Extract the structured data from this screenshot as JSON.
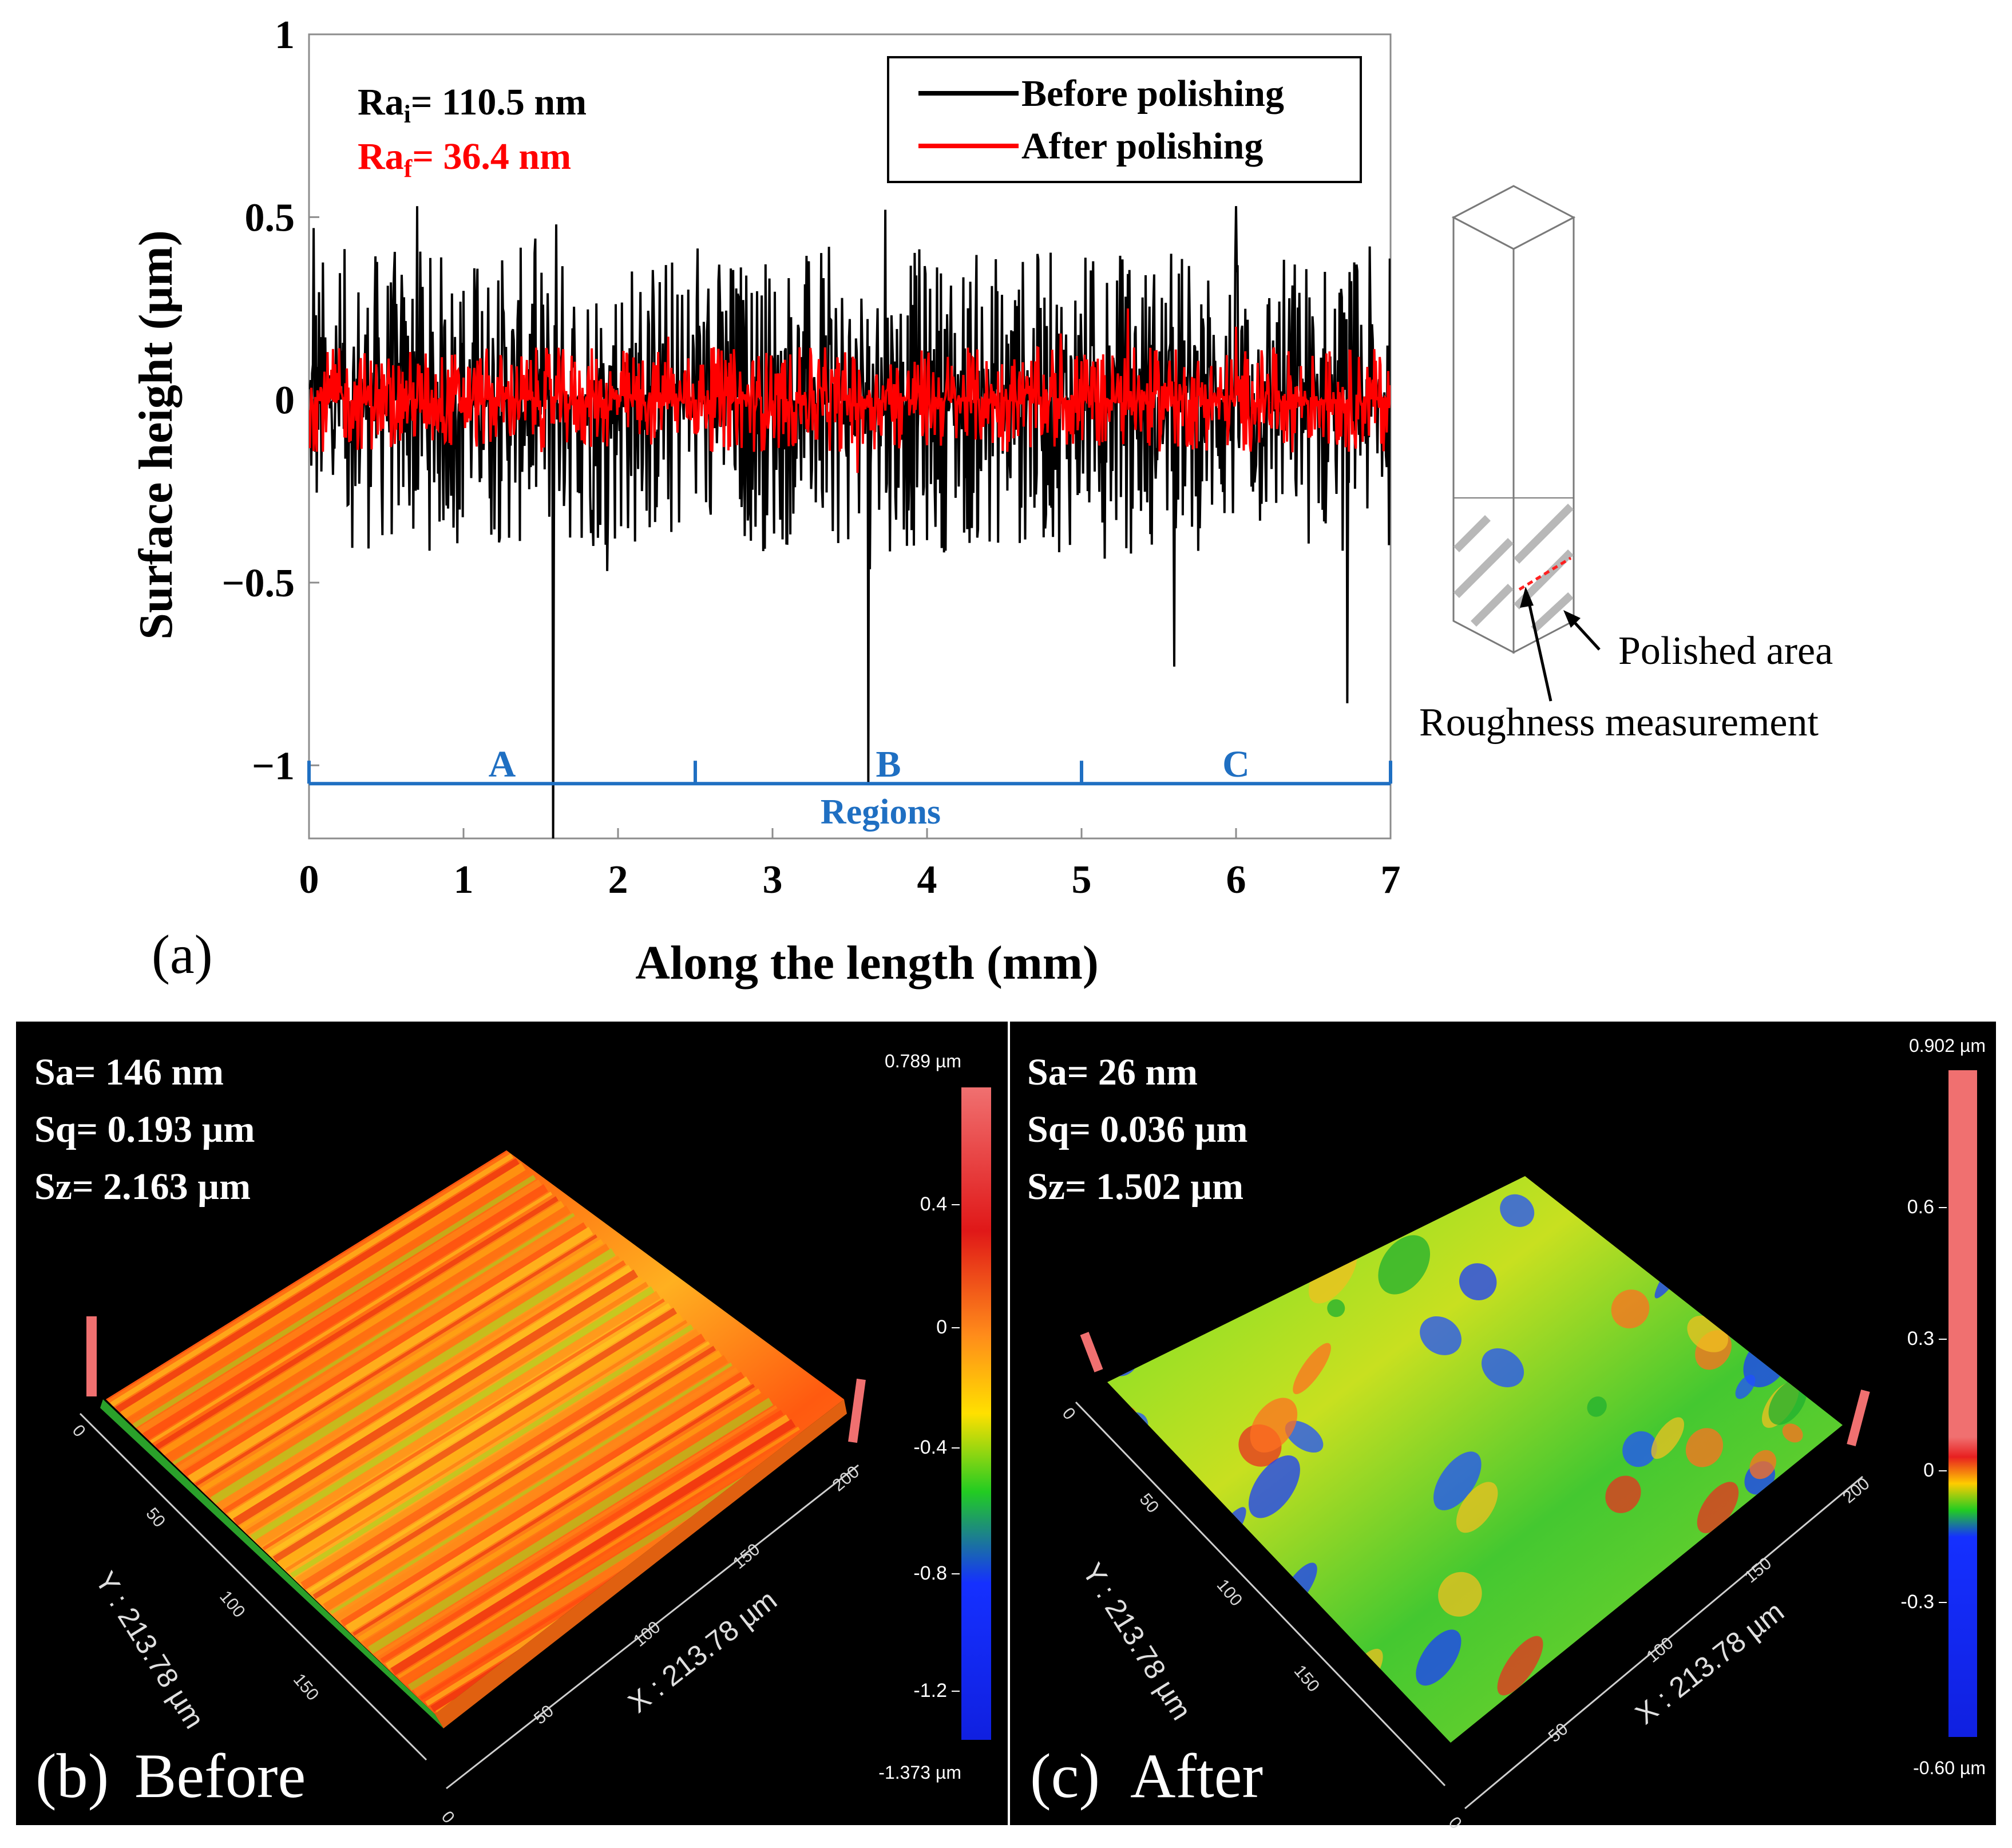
{
  "chart_data": [
    {
      "type": "line",
      "panel_label": "(a)",
      "xlabel": "Along the length (mm)",
      "ylabel": "Surface height (µm)",
      "xlim": [
        0,
        7
      ],
      "ylim": [
        -1.2,
        1
      ],
      "x_ticks": [
        0,
        1,
        2,
        3,
        4,
        5,
        6,
        7
      ],
      "y_ticks": [
        -1,
        -0.5,
        0,
        0.5,
        1
      ],
      "y_tick_labels": [
        "−1",
        "−0.5",
        "0",
        "0.5",
        "1"
      ],
      "legend_position": "top-right",
      "series": [
        {
          "name": "Before polishing",
          "color": "#000000",
          "typical_amplitude": 0.3,
          "spikes": [
            [
              1.58,
              -1.2
            ],
            [
              3.62,
              -1.05
            ],
            [
              5.6,
              -0.73
            ],
            [
              6.72,
              -0.83
            ],
            [
              0.7,
              0.53
            ],
            [
              1.6,
              0.48
            ],
            [
              3.73,
              0.52
            ],
            [
              6.0,
              0.53
            ],
            [
              0.03,
              0.47
            ]
          ]
        },
        {
          "name": "After polishing",
          "color": "#ff0000",
          "typical_amplitude": 0.12,
          "spikes": [
            [
              3.55,
              -0.2
            ],
            [
              5.3,
              0.25
            ],
            [
              6.0,
              0.2
            ]
          ]
        }
      ],
      "annotations": {
        "ra_initial": {
          "prefix": "Ra",
          "sub": "i",
          "text": "= 110.5 nm",
          "color": "#000000"
        },
        "ra_final": {
          "prefix": "Ra",
          "sub": "f",
          "text": "= 36.4 nm",
          "color": "#ff0000"
        },
        "regions": {
          "label": "Regions",
          "color": "#1f6fc2",
          "y": -1.05,
          "boundaries": [
            0,
            2.5,
            5,
            7
          ],
          "items": [
            {
              "label": "A",
              "x": 1.25
            },
            {
              "label": "B",
              "x": 3.75
            },
            {
              "label": "C",
              "x": 6.0
            }
          ]
        }
      }
    },
    {
      "type": "surface-3d",
      "panel_label": "(b)",
      "title": "Before",
      "stats": [
        "Sa= 146 nm",
        "Sq= 0.193 µm",
        "Sz= 2.163 µm"
      ],
      "x_axis_label": "X : 213.78 µm",
      "y_axis_label": "Y : 213.78 µm",
      "x_ticks": [
        "50",
        "100",
        "150",
        "200"
      ],
      "y_ticks": [
        "0",
        "50",
        "100",
        "150"
      ],
      "origin_label": "0",
      "colorbar": {
        "max_label": "0.789 µm",
        "min_label": "-1.373 µm",
        "tick_labels": [
          "0.4",
          "0",
          "-0.4",
          "-0.8",
          "-1.2"
        ]
      }
    },
    {
      "type": "surface-3d",
      "panel_label": "(c)",
      "title": "After",
      "stats": [
        "Sa= 26 nm",
        "Sq= 0.036 µm",
        "Sz= 1.502 µm"
      ],
      "x_axis_label": "X : 213.78 µm",
      "y_axis_label": "Y : 213.78 µm",
      "x_ticks": [
        "50",
        "100",
        "150",
        "200"
      ],
      "y_ticks": [
        "0",
        "50",
        "100",
        "150"
      ],
      "origin_label": "0",
      "colorbar": {
        "max_label": "0.902 µm",
        "min_label": "-0.60 µm",
        "tick_labels": [
          "0.6",
          "0.3",
          "0",
          "-0.3"
        ]
      }
    }
  ],
  "schematic": {
    "labels": {
      "polished_area": "Polished area",
      "roughness_measurement": "Roughness measurement"
    }
  }
}
